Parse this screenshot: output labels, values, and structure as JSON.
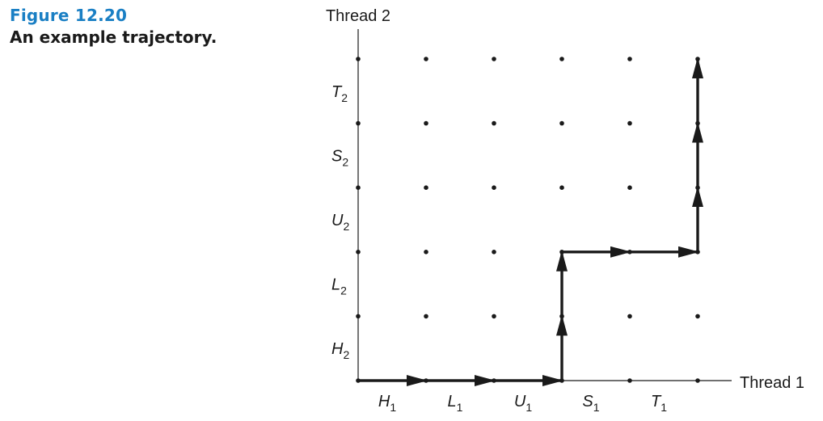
{
  "figure": {
    "number": "Figure 12.20",
    "title": "An example trajectory."
  },
  "axes": {
    "x_label": "Thread 1",
    "y_label": "Thread 2"
  },
  "x_segments": [
    {
      "letter": "H",
      "sub": "1"
    },
    {
      "letter": "L",
      "sub": "1"
    },
    {
      "letter": "U",
      "sub": "1"
    },
    {
      "letter": "S",
      "sub": "1"
    },
    {
      "letter": "T",
      "sub": "1"
    }
  ],
  "y_segments": [
    {
      "letter": "H",
      "sub": "2"
    },
    {
      "letter": "L",
      "sub": "2"
    },
    {
      "letter": "U",
      "sub": "2"
    },
    {
      "letter": "S",
      "sub": "2"
    },
    {
      "letter": "T",
      "sub": "2"
    }
  ],
  "trajectory": [
    [
      0,
      0
    ],
    [
      1,
      0
    ],
    [
      2,
      0
    ],
    [
      3,
      0
    ],
    [
      3,
      1
    ],
    [
      3,
      2
    ],
    [
      4,
      2
    ],
    [
      5,
      2
    ],
    [
      5,
      3
    ],
    [
      5,
      4
    ],
    [
      5,
      5
    ]
  ],
  "colors": {
    "accent": "#1a7fc4",
    "ink": "#1a1a1a"
  }
}
